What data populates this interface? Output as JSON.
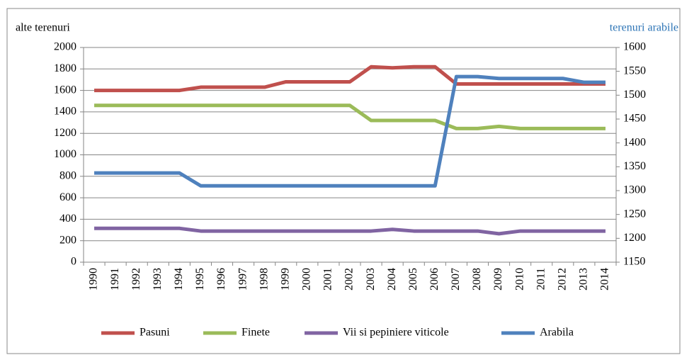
{
  "chart_data": {
    "type": "line",
    "y_axis_label": "alte terenuri",
    "y2_axis_label": "terenuri arabile",
    "categories": [
      "1990",
      "1991",
      "1992",
      "1993",
      "1994",
      "1995",
      "1996",
      "1997",
      "1998",
      "1999",
      "2000",
      "2001",
      "2002",
      "2003",
      "2004",
      "2005",
      "2006",
      "2007",
      "2008",
      "2009",
      "2010",
      "2011",
      "2012",
      "2013",
      "2014"
    ],
    "series": [
      {
        "name": "Pasuni",
        "color": "#c0504d",
        "values": [
          1600,
          1600,
          1600,
          1600,
          1600,
          1630,
          1630,
          1630,
          1630,
          1680,
          1680,
          1680,
          1680,
          1820,
          1810,
          1820,
          1820,
          1660,
          1660,
          1660,
          1660,
          1660,
          1660,
          1660,
          1660
        ]
      },
      {
        "name": "Finete",
        "color": "#9bbb59",
        "values": [
          1460,
          1460,
          1460,
          1460,
          1460,
          1460,
          1460,
          1460,
          1460,
          1460,
          1460,
          1460,
          1460,
          1320,
          1320,
          1320,
          1320,
          1245,
          1245,
          1265,
          1245,
          1245,
          1245,
          1245,
          1245
        ]
      },
      {
        "name": "Vii si pepiniere viticole",
        "color": "#8064a2",
        "values": [
          315,
          315,
          315,
          315,
          315,
          290,
          290,
          290,
          290,
          290,
          290,
          290,
          290,
          290,
          305,
          290,
          290,
          290,
          290,
          265,
          290,
          290,
          290,
          290,
          290
        ]
      },
      {
        "name": "Arabila",
        "color": "#4f81bd",
        "axis": "y2",
        "values": [
          1337,
          1337,
          1337,
          1337,
          1337,
          1310,
          1310,
          1310,
          1310,
          1310,
          1310,
          1310,
          1310,
          1310,
          1310,
          1310,
          1310,
          1539,
          1539,
          1535,
          1535,
          1535,
          1535,
          1527,
          1527
        ]
      }
    ],
    "ylim": [
      0,
      2000
    ],
    "yticks": [
      0,
      200,
      400,
      600,
      800,
      1000,
      1200,
      1400,
      1600,
      1800,
      2000
    ],
    "y2lim": [
      1150,
      1600
    ],
    "y2ticks": [
      1150,
      1200,
      1250,
      1300,
      1350,
      1400,
      1450,
      1500,
      1550,
      1600
    ],
    "grid": true,
    "legend": "bottom"
  }
}
